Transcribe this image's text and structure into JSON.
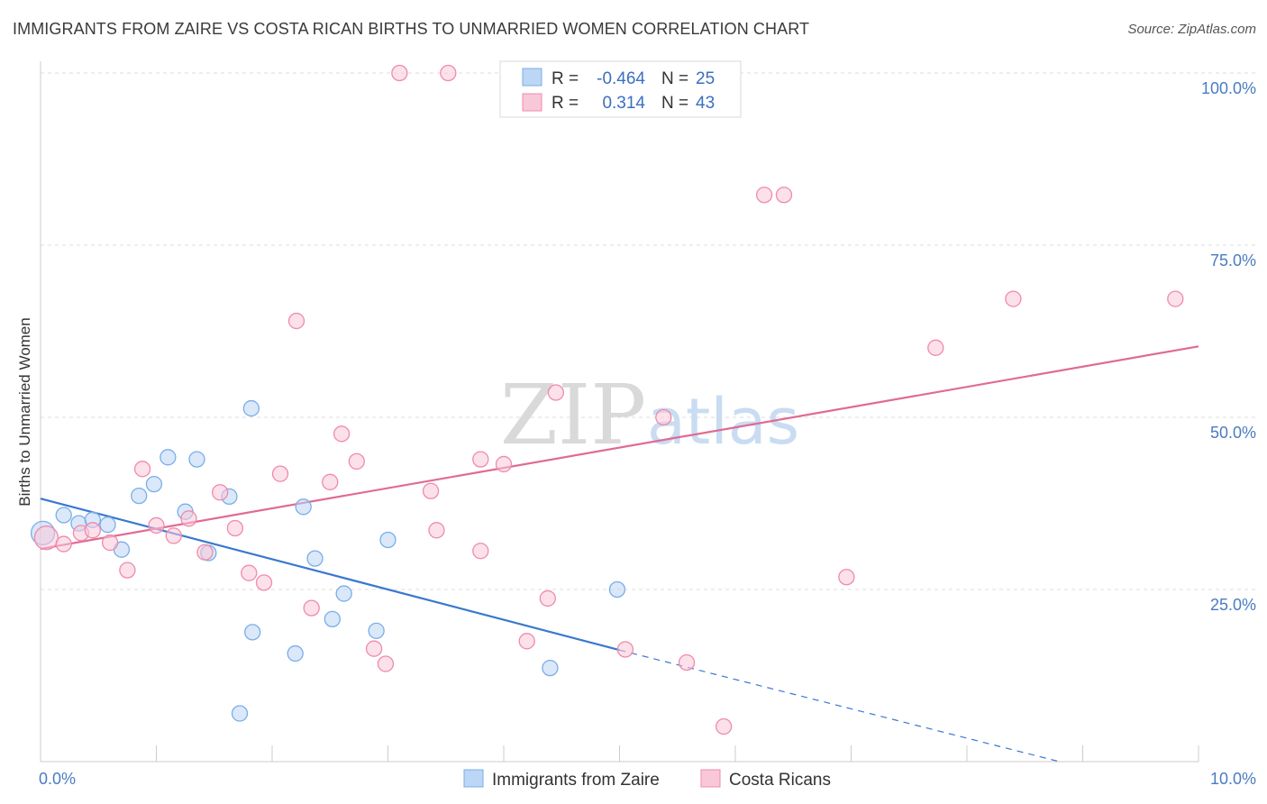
{
  "title": "IMMIGRANTS FROM ZAIRE VS COSTA RICAN BIRTHS TO UNMARRIED WOMEN CORRELATION CHART",
  "source": "Source: ZipAtlas.com",
  "watermark": {
    "zip": "ZIP",
    "atlas": "atlas"
  },
  "legend": {
    "rows": [
      {
        "r_label": "R = ",
        "r_value": "-0.464",
        "n_label": "N = ",
        "n_value": "25"
      },
      {
        "r_label": "R = ",
        "r_value": "0.314",
        "n_label": "N = ",
        "n_value": "43"
      }
    ]
  },
  "chart_data": {
    "type": "scatter",
    "title": "IMMIGRANTS FROM ZAIRE VS COSTA RICAN BIRTHS TO UNMARRIED WOMEN CORRELATION CHART",
    "xlabel": "",
    "ylabel": "Births to Unmarried Women",
    "xlim": [
      0,
      10
    ],
    "ylim": [
      0,
      100
    ],
    "x_tick_labels": [
      "0.0%",
      "10.0%"
    ],
    "y_ticks": [
      25,
      50,
      75,
      100
    ],
    "y_tick_labels": [
      "25.0%",
      "50.0%",
      "75.0%",
      "100.0%"
    ],
    "grid": true,
    "series": [
      {
        "name": "Immigrants from Zaire",
        "color": "#7aaee8",
        "fill": "#bcd6f5",
        "r": -0.464,
        "n": 25,
        "trend": {
          "x0": 0,
          "y0": 38.2,
          "x1": 5.0,
          "y1": 16.2,
          "dash_to_x": 8.8,
          "dash_to_y": 0
        },
        "points": [
          [
            0.02,
            33.2
          ],
          [
            0.2,
            35.8
          ],
          [
            0.33,
            34.6
          ],
          [
            0.45,
            35.1
          ],
          [
            0.58,
            34.4
          ],
          [
            0.7,
            30.8
          ],
          [
            0.85,
            38.6
          ],
          [
            0.98,
            40.3
          ],
          [
            1.1,
            44.2
          ],
          [
            1.25,
            36.3
          ],
          [
            1.35,
            43.9
          ],
          [
            1.45,
            30.3
          ],
          [
            1.63,
            38.5
          ],
          [
            1.82,
            51.3
          ],
          [
            2.27,
            37.0
          ],
          [
            2.37,
            29.5
          ],
          [
            2.52,
            20.7
          ],
          [
            2.62,
            24.4
          ],
          [
            1.83,
            18.8
          ],
          [
            2.2,
            15.7
          ],
          [
            2.9,
            19.0
          ],
          [
            3.0,
            32.2
          ],
          [
            4.4,
            13.6
          ],
          [
            4.98,
            25.0
          ],
          [
            1.72,
            7.0
          ]
        ]
      },
      {
        "name": "Costa Ricans",
        "color": "#f08aab",
        "fill": "#f9c8d8",
        "r": 0.314,
        "n": 43,
        "trend": {
          "x0": 0,
          "y0": 30.9,
          "x1": 10.0,
          "y1": 60.3
        },
        "points": [
          [
            0.05,
            32.5
          ],
          [
            0.2,
            31.6
          ],
          [
            0.35,
            33.2
          ],
          [
            0.45,
            33.6
          ],
          [
            0.6,
            31.8
          ],
          [
            0.75,
            27.8
          ],
          [
            0.88,
            42.5
          ],
          [
            1.0,
            34.3
          ],
          [
            1.15,
            32.8
          ],
          [
            1.28,
            35.3
          ],
          [
            1.42,
            30.4
          ],
          [
            1.55,
            39.1
          ],
          [
            1.68,
            33.9
          ],
          [
            1.8,
            27.4
          ],
          [
            1.93,
            26.0
          ],
          [
            2.07,
            41.8
          ],
          [
            2.21,
            64.0
          ],
          [
            2.34,
            22.3
          ],
          [
            2.5,
            40.6
          ],
          [
            2.6,
            47.6
          ],
          [
            2.73,
            43.6
          ],
          [
            2.88,
            16.4
          ],
          [
            2.98,
            14.2
          ],
          [
            3.1,
            100.0
          ],
          [
            3.52,
            100.0
          ],
          [
            3.37,
            39.3
          ],
          [
            3.42,
            33.6
          ],
          [
            3.8,
            43.9
          ],
          [
            4.0,
            43.2
          ],
          [
            3.8,
            30.6
          ],
          [
            4.2,
            17.5
          ],
          [
            4.38,
            23.7
          ],
          [
            4.45,
            53.6
          ],
          [
            5.05,
            16.3
          ],
          [
            5.38,
            50.0
          ],
          [
            5.58,
            14.4
          ],
          [
            5.9,
            5.1
          ],
          [
            6.25,
            82.3
          ],
          [
            6.42,
            82.3
          ],
          [
            6.96,
            26.8
          ],
          [
            7.73,
            60.1
          ],
          [
            8.4,
            67.2
          ],
          [
            9.8,
            67.2
          ]
        ]
      }
    ]
  }
}
